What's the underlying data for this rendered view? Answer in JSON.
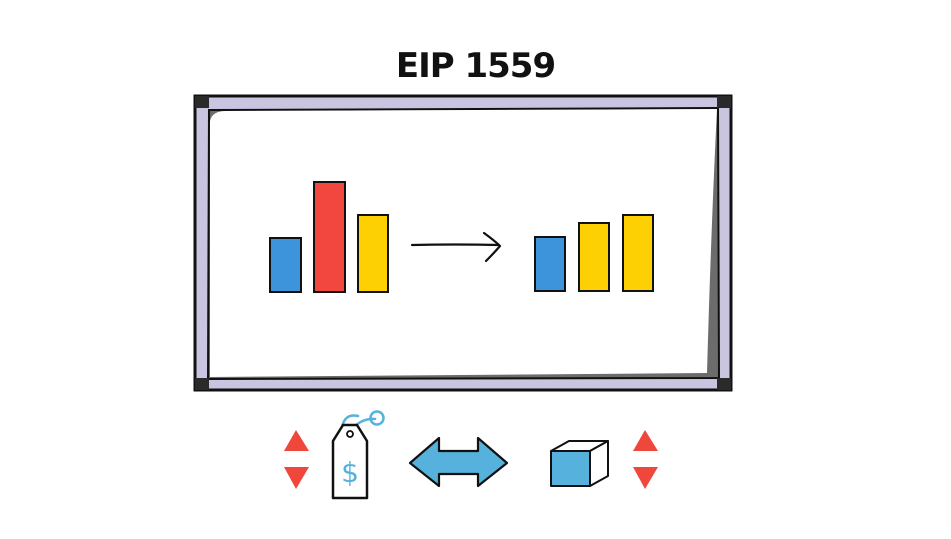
{
  "title": "EIP 1559",
  "colors": {
    "blue": "#3d94db",
    "red": "#f2473e",
    "yellow": "#fdd003",
    "frame": "#c9c5e0",
    "outline": "#111111",
    "arrow_red": "#ef473c",
    "accent_blue": "#56b2dd"
  },
  "board": {
    "left_group": [
      "blue",
      "red",
      "yellow"
    ],
    "right_group": [
      "blue",
      "yellow",
      "yellow"
    ],
    "relative_heights_left": [
      0.5,
      1.0,
      0.7
    ],
    "relative_heights_right": [
      0.5,
      0.64,
      0.72
    ]
  },
  "icons": {
    "left_updown": "up-down-arrows-icon",
    "price_tag": "price-tag-dollar-icon",
    "exchange": "double-headed-arrow-icon",
    "block": "block-cube-icon",
    "right_updown": "up-down-arrows-icon"
  },
  "price_tag_symbol": "$"
}
